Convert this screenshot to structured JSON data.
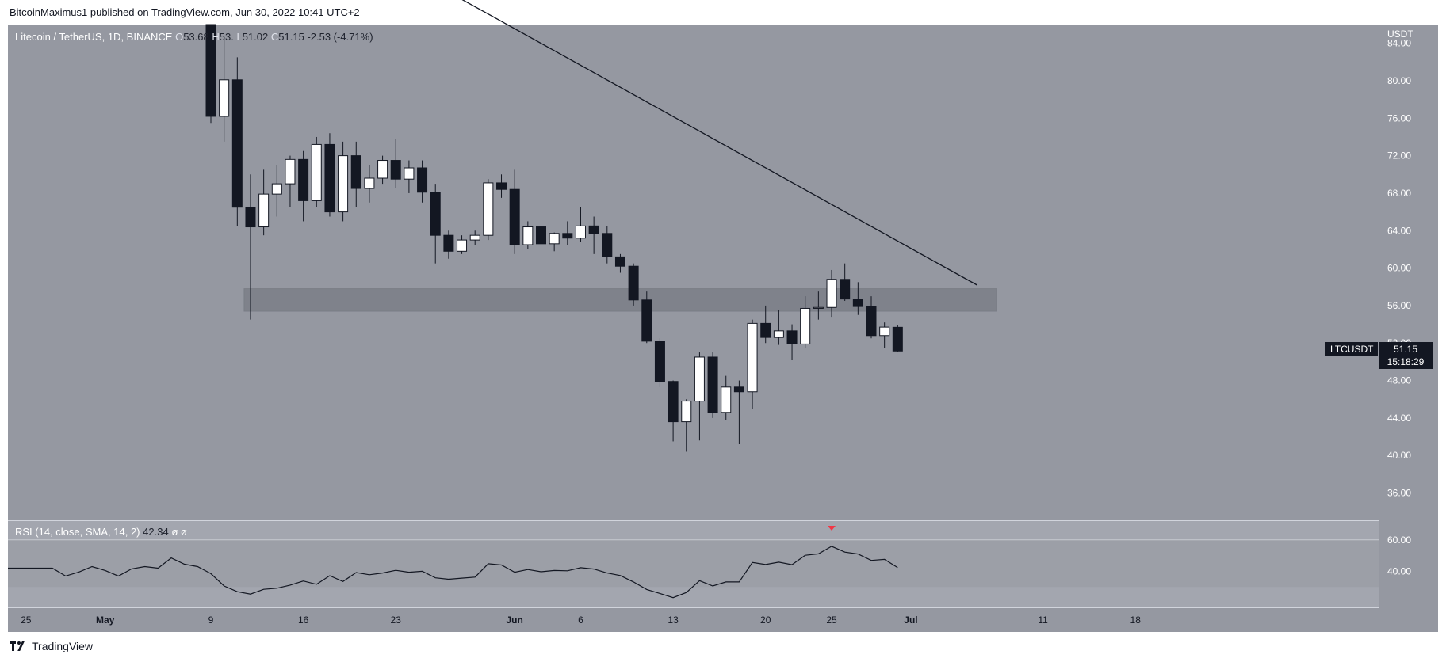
{
  "header": {
    "published": "BitcoinMaximus1 published on TradingView.com, Jun 30, 2022 10:41 UTC+2"
  },
  "legend": {
    "symbol": "Litecoin / TetherUS, 1D, BINANCE",
    "o_label": "O",
    "o_value": "53.68",
    "h_label": "H",
    "h_value": "53.",
    "l_label": "L",
    "l_value": "51.02",
    "c_label": "C",
    "c_value": "51.15",
    "change": "-2.53 (-4.71%)"
  },
  "rsi_legend": {
    "label": "RSI (14, close, SMA, 14, 2)",
    "value": "42.34",
    "na1": "ø",
    "na2": "ø"
  },
  "price_axis": {
    "currency": "USDT",
    "ticks": [
      "84.00",
      "80.00",
      "76.00",
      "72.00",
      "68.00",
      "64.00",
      "60.00",
      "56.00",
      "52.00",
      "48.00",
      "44.00",
      "40.00",
      "36.00"
    ]
  },
  "rsi_axis": {
    "ticks": [
      "60.00",
      "40.00"
    ]
  },
  "time_axis": {
    "labels": [
      "25",
      "May",
      "9",
      "16",
      "23",
      "Jun",
      "6",
      "13",
      "20",
      "25",
      "Jul",
      "11",
      "18"
    ]
  },
  "last_price": {
    "symbol": "LTCUSDT",
    "price": "51.15",
    "countdown": "15:18:29"
  },
  "footer": {
    "brand": "TradingView"
  },
  "colors": {
    "pane_bg": "#9598a1",
    "rsi_bg": "#a3a6af",
    "up_candle": "#ffffff",
    "down_candle": "#131722",
    "zone": "#7b7e87",
    "rsi_band": "#9c9fa7",
    "marker": "#f23645"
  },
  "chart_data": {
    "type": "candlestick",
    "series_name": "Litecoin / TetherUS, 1D, BINANCE",
    "ylim": [
      33,
      86
    ],
    "x_labels": [
      "25",
      "May",
      "9",
      "16",
      "23",
      "Jun",
      "6",
      "13",
      "20",
      "25",
      "Jul",
      "11",
      "18"
    ],
    "candles": [
      {
        "date": "2022-05-09",
        "o": 87.0,
        "h": 90.0,
        "l": 75.5,
        "c": 76.2
      },
      {
        "date": "2022-05-10",
        "o": 76.2,
        "h": 84.5,
        "l": 73.5,
        "c": 80.1
      },
      {
        "date": "2022-05-11",
        "o": 80.1,
        "h": 82.5,
        "l": 64.5,
        "c": 66.5
      },
      {
        "date": "2022-05-12",
        "o": 66.5,
        "h": 70.0,
        "l": 54.5,
        "c": 64.4
      },
      {
        "date": "2022-05-13",
        "o": 64.4,
        "h": 70.5,
        "l": 63.5,
        "c": 67.9
      },
      {
        "date": "2022-05-14",
        "o": 67.9,
        "h": 71.0,
        "l": 65.5,
        "c": 69.0
      },
      {
        "date": "2022-05-15",
        "o": 69.0,
        "h": 72.0,
        "l": 66.5,
        "c": 71.6
      },
      {
        "date": "2022-05-16",
        "o": 71.6,
        "h": 72.5,
        "l": 65.0,
        "c": 67.2
      },
      {
        "date": "2022-05-17",
        "o": 67.2,
        "h": 74.0,
        "l": 66.5,
        "c": 73.2
      },
      {
        "date": "2022-05-18",
        "o": 73.2,
        "h": 74.4,
        "l": 65.5,
        "c": 66.0
      },
      {
        "date": "2022-05-19",
        "o": 66.0,
        "h": 73.5,
        "l": 65.0,
        "c": 72.0
      },
      {
        "date": "2022-05-20",
        "o": 72.0,
        "h": 73.5,
        "l": 66.5,
        "c": 68.5
      },
      {
        "date": "2022-05-21",
        "o": 68.5,
        "h": 71.0,
        "l": 67.0,
        "c": 69.6
      },
      {
        "date": "2022-05-22",
        "o": 69.6,
        "h": 72.0,
        "l": 69.0,
        "c": 71.5
      },
      {
        "date": "2022-05-23",
        "o": 71.5,
        "h": 73.8,
        "l": 68.5,
        "c": 69.5
      },
      {
        "date": "2022-05-24",
        "o": 69.5,
        "h": 71.5,
        "l": 68.0,
        "c": 70.7
      },
      {
        "date": "2022-05-25",
        "o": 70.7,
        "h": 71.5,
        "l": 67.0,
        "c": 68.1
      },
      {
        "date": "2022-05-26",
        "o": 68.1,
        "h": 69.0,
        "l": 60.5,
        "c": 63.5
      },
      {
        "date": "2022-05-27",
        "o": 63.5,
        "h": 64.0,
        "l": 61.0,
        "c": 61.8
      },
      {
        "date": "2022-05-28",
        "o": 61.8,
        "h": 63.5,
        "l": 61.5,
        "c": 63.0
      },
      {
        "date": "2022-05-29",
        "o": 63.0,
        "h": 64.0,
        "l": 62.5,
        "c": 63.5
      },
      {
        "date": "2022-05-30",
        "o": 63.5,
        "h": 69.5,
        "l": 63.0,
        "c": 69.1
      },
      {
        "date": "2022-05-31",
        "o": 69.1,
        "h": 70.0,
        "l": 67.5,
        "c": 68.4
      },
      {
        "date": "2022-06-01",
        "o": 68.4,
        "h": 70.5,
        "l": 61.5,
        "c": 62.5
      },
      {
        "date": "2022-06-02",
        "o": 62.5,
        "h": 65.0,
        "l": 62.0,
        "c": 64.4
      },
      {
        "date": "2022-06-03",
        "o": 64.4,
        "h": 64.8,
        "l": 61.5,
        "c": 62.6
      },
      {
        "date": "2022-06-04",
        "o": 62.6,
        "h": 63.8,
        "l": 61.8,
        "c": 63.7
      },
      {
        "date": "2022-06-05",
        "o": 63.7,
        "h": 65.0,
        "l": 62.5,
        "c": 63.2
      },
      {
        "date": "2022-06-06",
        "o": 63.2,
        "h": 66.5,
        "l": 62.8,
        "c": 64.5
      },
      {
        "date": "2022-06-07",
        "o": 64.5,
        "h": 65.5,
        "l": 61.5,
        "c": 63.7
      },
      {
        "date": "2022-06-08",
        "o": 63.7,
        "h": 64.5,
        "l": 60.5,
        "c": 61.2
      },
      {
        "date": "2022-06-09",
        "o": 61.2,
        "h": 61.5,
        "l": 59.5,
        "c": 60.2
      },
      {
        "date": "2022-06-10",
        "o": 60.2,
        "h": 60.5,
        "l": 56.0,
        "c": 56.6
      },
      {
        "date": "2022-06-11",
        "o": 56.6,
        "h": 57.5,
        "l": 52.0,
        "c": 52.2
      },
      {
        "date": "2022-06-12",
        "o": 52.2,
        "h": 52.5,
        "l": 47.3,
        "c": 47.9
      },
      {
        "date": "2022-06-13",
        "o": 47.9,
        "h": 48.0,
        "l": 41.5,
        "c": 43.6
      },
      {
        "date": "2022-06-14",
        "o": 43.6,
        "h": 46.0,
        "l": 40.4,
        "c": 45.8
      },
      {
        "date": "2022-06-15",
        "o": 45.8,
        "h": 51.0,
        "l": 41.6,
        "c": 50.5
      },
      {
        "date": "2022-06-16",
        "o": 50.5,
        "h": 51.0,
        "l": 44.0,
        "c": 44.6
      },
      {
        "date": "2022-06-17",
        "o": 44.6,
        "h": 48.5,
        "l": 43.8,
        "c": 47.3
      },
      {
        "date": "2022-06-18",
        "o": 47.3,
        "h": 48.0,
        "l": 41.2,
        "c": 46.8
      },
      {
        "date": "2022-06-19",
        "o": 46.8,
        "h": 54.5,
        "l": 45.0,
        "c": 54.1
      },
      {
        "date": "2022-06-20",
        "o": 54.1,
        "h": 56.0,
        "l": 52.0,
        "c": 52.6
      },
      {
        "date": "2022-06-21",
        "o": 52.6,
        "h": 55.5,
        "l": 51.8,
        "c": 53.3
      },
      {
        "date": "2022-06-22",
        "o": 53.3,
        "h": 54.0,
        "l": 50.2,
        "c": 51.9
      },
      {
        "date": "2022-06-23",
        "o": 51.9,
        "h": 57.0,
        "l": 51.5,
        "c": 55.7
      },
      {
        "date": "2022-06-24",
        "o": 55.7,
        "h": 57.5,
        "l": 54.5,
        "c": 55.8
      },
      {
        "date": "2022-06-25",
        "o": 55.8,
        "h": 59.8,
        "l": 54.8,
        "c": 58.8
      },
      {
        "date": "2022-06-26",
        "o": 58.8,
        "h": 60.5,
        "l": 56.5,
        "c": 56.7
      },
      {
        "date": "2022-06-27",
        "o": 56.7,
        "h": 58.5,
        "l": 55.0,
        "c": 55.9
      },
      {
        "date": "2022-06-28",
        "o": 55.9,
        "h": 57.0,
        "l": 52.5,
        "c": 52.8
      },
      {
        "date": "2022-06-29",
        "o": 52.8,
        "h": 54.2,
        "l": 51.5,
        "c": 53.7
      },
      {
        "date": "2022-06-30",
        "o": 53.68,
        "h": 53.9,
        "l": 51.02,
        "c": 51.15
      }
    ],
    "resistance_zone": {
      "low": 55.4,
      "high": 57.8,
      "from": "2022-05-12",
      "to": "2022-07-07"
    },
    "trendline": {
      "from": {
        "date": "2022-05-18",
        "price": 96.5
      },
      "to": {
        "date": "2022-07-06",
        "price": 58.2
      }
    },
    "rsi": {
      "ylim": [
        17,
        72
      ],
      "band": [
        30,
        60
      ],
      "values": [
        38.5,
        30.6,
        27.0,
        25.5,
        28.5,
        29.2,
        31.2,
        33.8,
        31.7,
        37.2,
        33.5,
        39.2,
        37.8,
        38.9,
        40.6,
        39.4,
        40.0,
        35.8,
        34.9,
        35.6,
        36.3,
        44.8,
        44.0,
        39.4,
        41.1,
        39.7,
        40.5,
        40.3,
        42.3,
        41.4,
        38.9,
        37.3,
        33.2,
        28.4,
        25.9,
        23.2,
        26.5,
        34.0,
        30.6,
        33.2,
        33.2,
        45.6,
        44.3,
        45.8,
        44.2,
        50.2,
        51.1,
        55.9,
        52.2,
        51.0,
        46.9,
        47.6,
        42.34
      ],
      "marker_date": "2022-06-25"
    }
  }
}
